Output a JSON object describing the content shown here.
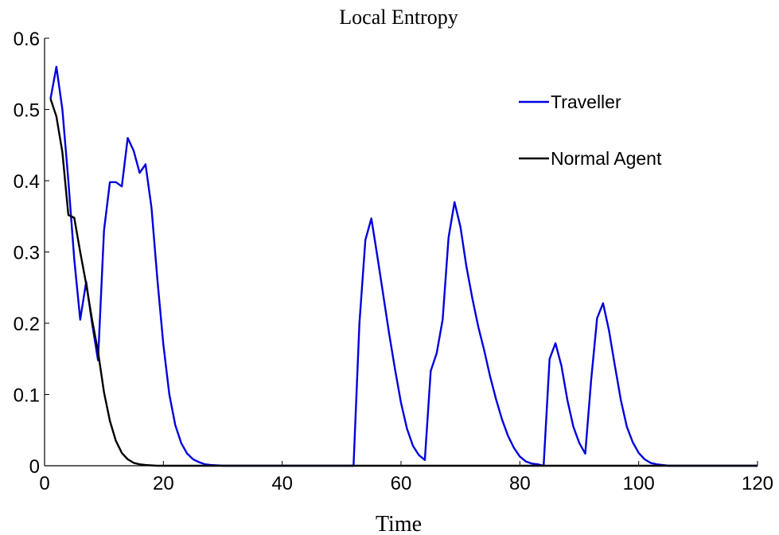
{
  "chart_data": {
    "type": "line",
    "title": "Local Entropy",
    "xlabel": "Time",
    "ylabel": "",
    "xlim": [
      0,
      120
    ],
    "ylim": [
      0,
      0.6
    ],
    "xticks": [
      "0",
      "20",
      "40",
      "60",
      "80",
      "100",
      "120"
    ],
    "yticks": [
      "0",
      "0.1",
      "0.2",
      "0.3",
      "0.4",
      "0.5",
      "0.6"
    ],
    "grid": false,
    "legend": "top-right",
    "series": [
      {
        "name": "Traveller",
        "color": "#0000dd",
        "x": [
          1,
          2,
          3,
          4,
          5,
          6,
          7,
          8,
          9,
          10,
          11,
          12,
          13,
          14,
          15,
          16,
          17,
          18,
          19,
          20,
          21,
          22,
          23,
          24,
          25,
          26,
          27,
          28,
          30,
          35,
          40,
          45,
          50,
          52,
          53,
          54,
          55,
          56,
          57,
          58,
          59,
          60,
          61,
          62,
          63,
          64,
          65,
          66,
          67,
          68,
          69,
          70,
          71,
          72,
          73,
          74,
          75,
          76,
          77,
          78,
          79,
          80,
          81,
          82,
          83,
          84,
          85,
          86,
          87,
          88,
          89,
          90,
          91,
          92,
          93,
          94,
          95,
          96,
          97,
          98,
          99,
          100,
          101,
          102,
          103,
          104,
          105,
          106,
          108,
          110,
          115,
          120
        ],
        "y": [
          0.515,
          0.56,
          0.5,
          0.4,
          0.29,
          0.205,
          0.258,
          0.2,
          0.148,
          0.33,
          0.398,
          0.398,
          0.392,
          0.46,
          0.442,
          0.411,
          0.423,
          0.362,
          0.26,
          0.17,
          0.1,
          0.057,
          0.032,
          0.017,
          0.009,
          0.005,
          0.002,
          0.001,
          0,
          0,
          0,
          0,
          0,
          0,
          0.2,
          0.317,
          0.347,
          0.295,
          0.24,
          0.185,
          0.135,
          0.088,
          0.052,
          0.028,
          0.015,
          0.008,
          0.133,
          0.158,
          0.205,
          0.32,
          0.37,
          0.335,
          0.28,
          0.235,
          0.195,
          0.162,
          0.125,
          0.093,
          0.065,
          0.042,
          0.025,
          0.013,
          0.006,
          0.003,
          0.002,
          0,
          0.15,
          0.172,
          0.14,
          0.092,
          0.055,
          0.032,
          0.017,
          0.12,
          0.207,
          0.228,
          0.19,
          0.14,
          0.092,
          0.055,
          0.033,
          0.018,
          0.009,
          0.004,
          0.002,
          0.001,
          0,
          0,
          0,
          0,
          0,
          0
        ]
      },
      {
        "name": "Normal Agent",
        "color": "#000000",
        "x": [
          1,
          2,
          3,
          4,
          5,
          6,
          7,
          8,
          9,
          10,
          11,
          12,
          13,
          14,
          15,
          16,
          17,
          18,
          19,
          20,
          22,
          25,
          30,
          40,
          60,
          80,
          100,
          120
        ],
        "y": [
          0.515,
          0.49,
          0.44,
          0.352,
          0.348,
          0.3,
          0.255,
          0.205,
          0.16,
          0.103,
          0.063,
          0.035,
          0.018,
          0.009,
          0.004,
          0.002,
          0.001,
          0.0005,
          0,
          0,
          0,
          0,
          0,
          0,
          0,
          0,
          0,
          0
        ]
      }
    ]
  }
}
